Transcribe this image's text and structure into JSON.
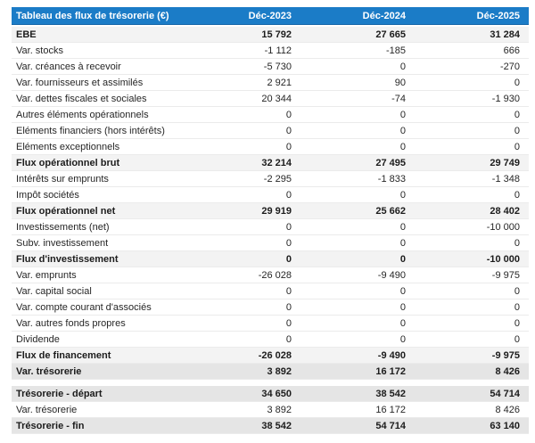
{
  "table": {
    "title": "Tableau des flux de trésorerie (€)",
    "columns": [
      "Déc-2023",
      "Déc-2024",
      "Déc-2025"
    ],
    "rows": [
      {
        "label": "EBE",
        "values": [
          "15 792",
          "27 665",
          "31 284"
        ],
        "style": "subtotal"
      },
      {
        "label": "Var. stocks",
        "values": [
          "-1 112",
          "-185",
          "666"
        ],
        "style": "normal"
      },
      {
        "label": "Var. créances à recevoir",
        "values": [
          "-5 730",
          "0",
          "-270"
        ],
        "style": "normal"
      },
      {
        "label": "Var. fournisseurs et assimilés",
        "values": [
          "2 921",
          "90",
          "0"
        ],
        "style": "normal"
      },
      {
        "label": "Var. dettes fiscales et sociales",
        "values": [
          "20 344",
          "-74",
          "-1 930"
        ],
        "style": "normal"
      },
      {
        "label": "Autres éléments opérationnels",
        "values": [
          "0",
          "0",
          "0"
        ],
        "style": "normal"
      },
      {
        "label": "Eléments financiers (hors intérêts)",
        "values": [
          "0",
          "0",
          "0"
        ],
        "style": "normal"
      },
      {
        "label": "Eléments exceptionnels",
        "values": [
          "0",
          "0",
          "0"
        ],
        "style": "normal"
      },
      {
        "label": "Flux opérationnel brut",
        "values": [
          "32 214",
          "27 495",
          "29 749"
        ],
        "style": "subtotal"
      },
      {
        "label": "Intérêts sur emprunts",
        "values": [
          "-2 295",
          "-1 833",
          "-1 348"
        ],
        "style": "normal"
      },
      {
        "label": "Impôt sociétés",
        "values": [
          "0",
          "0",
          "0"
        ],
        "style": "normal"
      },
      {
        "label": "Flux opérationnel net",
        "values": [
          "29 919",
          "25 662",
          "28 402"
        ],
        "style": "subtotal"
      },
      {
        "label": "Investissements (net)",
        "values": [
          "0",
          "0",
          "-10 000"
        ],
        "style": "normal"
      },
      {
        "label": "Subv. investissement",
        "values": [
          "0",
          "0",
          "0"
        ],
        "style": "normal"
      },
      {
        "label": "Flux d'investissement",
        "values": [
          "0",
          "0",
          "-10 000"
        ],
        "style": "subtotal"
      },
      {
        "label": "Var. emprunts",
        "values": [
          "-26 028",
          "-9 490",
          "-9 975"
        ],
        "style": "normal"
      },
      {
        "label": "Var. capital social",
        "values": [
          "0",
          "0",
          "0"
        ],
        "style": "normal"
      },
      {
        "label": "Var. compte courant d'associés",
        "values": [
          "0",
          "0",
          "0"
        ],
        "style": "normal"
      },
      {
        "label": "Var. autres fonds propres",
        "values": [
          "0",
          "0",
          "0"
        ],
        "style": "normal"
      },
      {
        "label": "Dividende",
        "values": [
          "0",
          "0",
          "0"
        ],
        "style": "normal"
      },
      {
        "label": "Flux de financement",
        "values": [
          "-26 028",
          "-9 490",
          "-9 975"
        ],
        "style": "subtotal"
      },
      {
        "label": "Var. trésorerie",
        "values": [
          "3 892",
          "16 172",
          "8 426"
        ],
        "style": "total",
        "gap_after": true
      },
      {
        "label": "Trésorerie - départ",
        "values": [
          "34 650",
          "38 542",
          "54 714"
        ],
        "style": "total"
      },
      {
        "label": "Var. trésorerie",
        "values": [
          "3 892",
          "16 172",
          "8 426"
        ],
        "style": "normal"
      },
      {
        "label": "Trésorerie - fin",
        "values": [
          "38 542",
          "54 714",
          "63 140"
        ],
        "style": "total"
      }
    ],
    "colors": {
      "header_bg": "#1b7cc7",
      "header_edge": "#1566a8",
      "header_text": "#ffffff",
      "subtotal_bg": "#f3f3f3",
      "total_bg": "#e5e5e5",
      "row_border": "#ebebeb",
      "text": "#262626",
      "bold_text": "#1c1c1c"
    }
  }
}
